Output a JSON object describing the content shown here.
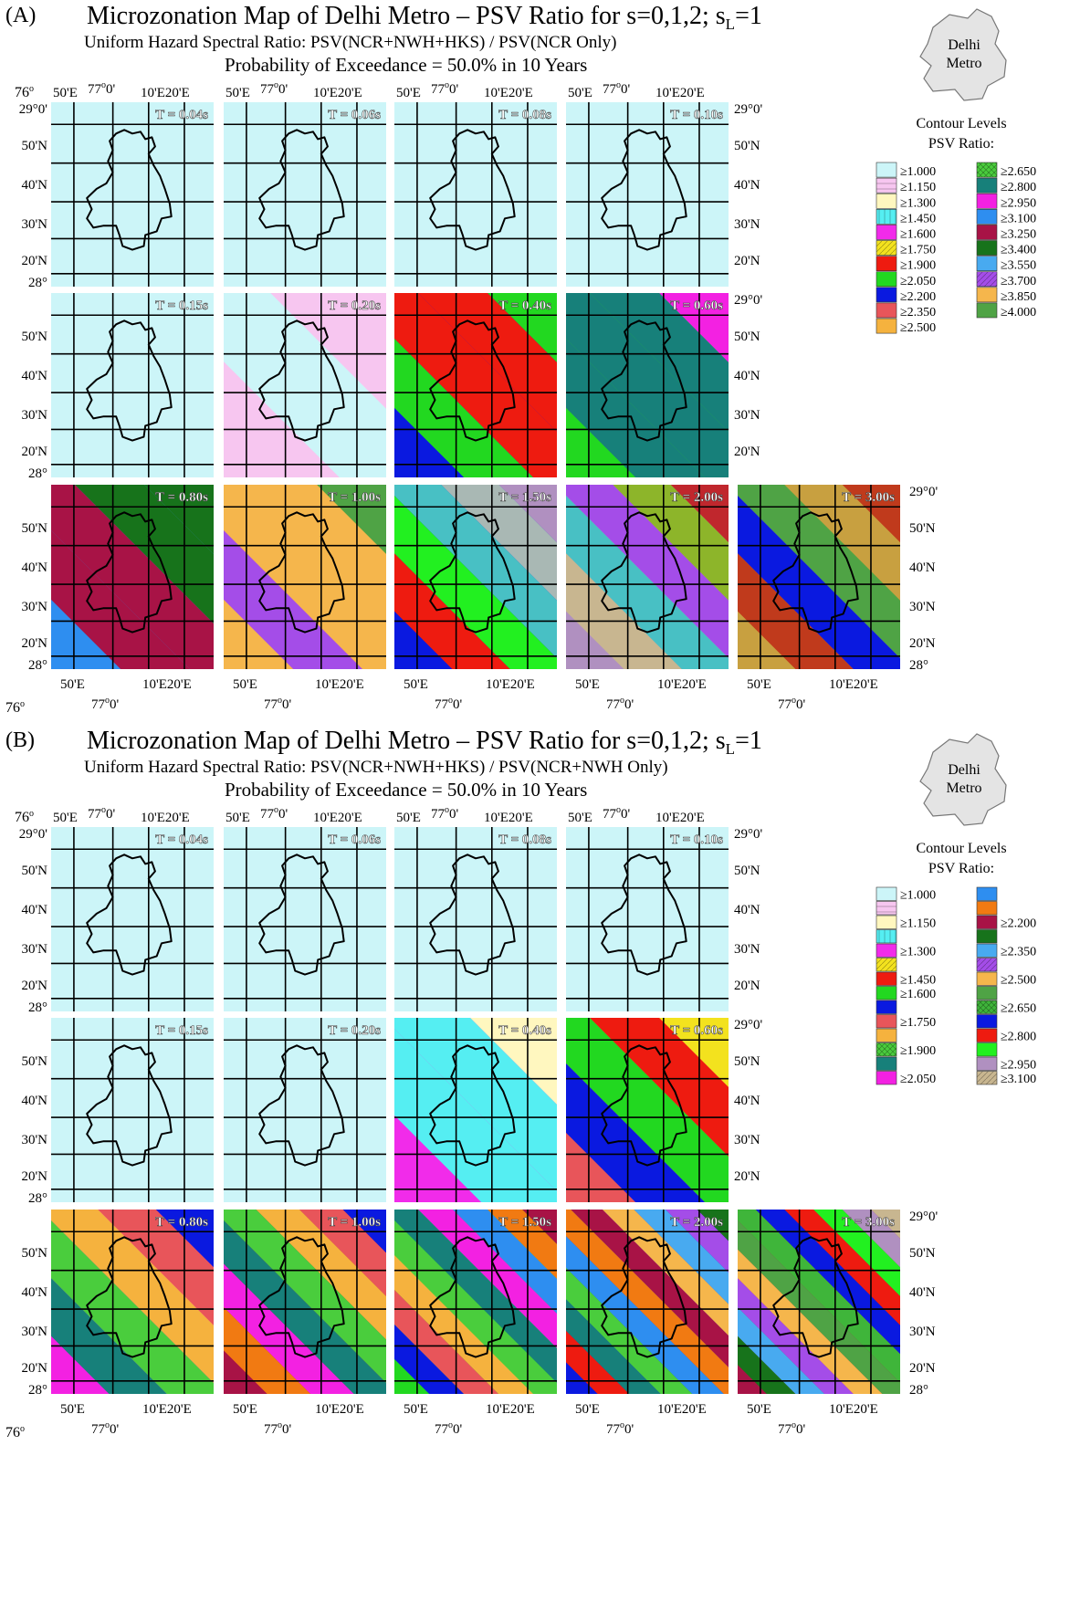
{
  "panels": [
    {
      "label": "(A)",
      "title_prefix": "Microzonation Map of Delhi Metro – PSV Ratio for s=0,1,2; s",
      "title_sub": "L",
      "title_suffix": "=1",
      "subtitle": "Uniform Hazard Spectral Ratio: PSV(NCR+NWH+HKS) / PSV(NCR Only)",
      "probability": "Probability of Exceedance = 50.0% in 10 Years",
      "inset_label_1": "Delhi",
      "inset_label_2": "Metro",
      "legend_title_1": "Contour Levels",
      "legend_title_2": "PSV Ratio:",
      "legend": [
        {
          "label": "≥1.000",
          "color": "#ccf5f8",
          "pattern": "none"
        },
        {
          "label": "≥1.150",
          "color": "#f7c6f0",
          "pattern": "hlines"
        },
        {
          "label": "≥1.300",
          "color": "#fff7bf",
          "pattern": "none"
        },
        {
          "label": "≥1.450",
          "color": "#55eef2",
          "pattern": "vlines"
        },
        {
          "label": "≥1.600",
          "color": "#f12bea",
          "pattern": "none"
        },
        {
          "label": "≥1.750",
          "color": "#f3e21e",
          "pattern": "diag"
        },
        {
          "label": "≥1.900",
          "color": "#ee1b10",
          "pattern": "none"
        },
        {
          "label": "≥2.050",
          "color": "#22d820",
          "pattern": "none"
        },
        {
          "label": "≥2.200",
          "color": "#0a19e0",
          "pattern": "none"
        },
        {
          "label": "≥2.350",
          "color": "#e8555a",
          "pattern": "none"
        },
        {
          "label": "≥2.500",
          "color": "#f5b23e",
          "pattern": "none"
        },
        {
          "label": "≥2.650",
          "color": "#4acd3d",
          "pattern": "cross"
        },
        {
          "label": "≥2.800",
          "color": "#17807a",
          "pattern": "none"
        },
        {
          "label": "≥2.950",
          "color": "#f321e2",
          "pattern": "none"
        },
        {
          "label": "≥3.100",
          "color": "#2e8ef0",
          "pattern": "none"
        },
        {
          "label": "≥3.250",
          "color": "#a81346",
          "pattern": "none"
        },
        {
          "label": "≥3.400",
          "color": "#17731b",
          "pattern": "none"
        },
        {
          "label": "≥3.550",
          "color": "#48aaf0",
          "pattern": "none"
        },
        {
          "label": "≥3.700",
          "color": "#a44de8",
          "pattern": "diag"
        },
        {
          "label": "≥3.850",
          "color": "#f5b64c",
          "pattern": "none"
        },
        {
          "label": "≥4.000",
          "color": "#4fa345",
          "pattern": "none"
        }
      ],
      "legend_count_note": "",
      "periods": [
        "T = 0.04s",
        "T = 0.06s",
        "T = 0.08s",
        "T = 0.10s",
        "T = 0.15s",
        "T = 0.20s",
        "T = 0.40s",
        "T = 0.60s",
        "T = 0.80s",
        "T = 1.00s",
        "T = 1.50s",
        "T = 2.00s",
        "T = 3.00s"
      ],
      "lon_top": {
        "deg76": "76",
        "sup": "o",
        "l1": "50'E",
        "l2": "77",
        "l3": "10'E",
        "l4": "20'E"
      },
      "lon_bottom": {
        "l1": "50'E",
        "l2": "77",
        "l3": "10'E20'E",
        "deg76": "76"
      },
      "lat_labels": [
        "29°0'",
        "50'N",
        "40'N",
        "30'N",
        "20'N",
        "28°"
      ]
    },
    {
      "label": "(B)",
      "title_prefix": "Microzonation Map of Delhi Metro – PSV Ratio for s=0,1,2; s",
      "title_sub": "L",
      "title_suffix": "=1",
      "subtitle": "Uniform Hazard Spectral Ratio: PSV(NCR+NWH+HKS) / PSV(NCR+NWH Only)",
      "probability": "Probability of Exceedance = 50.0% in 10 Years",
      "inset_label_1": "Delhi",
      "inset_label_2": "Metro",
      "legend_title_1": "Contour Levels",
      "legend_title_2": "PSV Ratio:",
      "legend": [
        {
          "label": "≥1.000",
          "color": "#ccf5f8",
          "pattern": "none"
        },
        {
          "label": "",
          "color": "#f7c6f0",
          "pattern": "hlines"
        },
        {
          "label": "≥1.150",
          "color": "#fff7bf",
          "pattern": "none"
        },
        {
          "label": "",
          "color": "#55eef2",
          "pattern": "vlines"
        },
        {
          "label": "≥1.300",
          "color": "#f12bea",
          "pattern": "none"
        },
        {
          "label": "",
          "color": "#f3e21e",
          "pattern": "diag"
        },
        {
          "label": "≥1.450",
          "color": "#ee1b10",
          "pattern": "none"
        },
        {
          "label": "≥1.600",
          "color": "#22d820",
          "pattern": "none"
        },
        {
          "label": "",
          "color": "#0a19e0",
          "pattern": "none"
        },
        {
          "label": "≥1.750",
          "color": "#e8555a",
          "pattern": "none"
        },
        {
          "label": "",
          "color": "#f5b23e",
          "pattern": "none"
        },
        {
          "label": "≥1.900",
          "color": "#4acd3d",
          "pattern": "cross"
        },
        {
          "label": "",
          "color": "#17807a",
          "pattern": "none"
        },
        {
          "label": "≥2.050",
          "color": "#f321e2",
          "pattern": "none"
        },
        {
          "label": "",
          "color": "#2e8ef0",
          "pattern": "none"
        },
        {
          "label": "",
          "color": "#f17a12",
          "pattern": "none"
        },
        {
          "label": "≥2.200",
          "color": "#a81346",
          "pattern": "none"
        },
        {
          "label": "",
          "color": "#17731b",
          "pattern": "none"
        },
        {
          "label": "≥2.350",
          "color": "#48aaf0",
          "pattern": "none"
        },
        {
          "label": "",
          "color": "#a44de8",
          "pattern": "diag"
        },
        {
          "label": "≥2.500",
          "color": "#f5b64c",
          "pattern": "none"
        },
        {
          "label": "",
          "color": "#4fa345",
          "pattern": "none"
        },
        {
          "label": "≥2.650",
          "color": "#3fb53a",
          "pattern": "cross"
        },
        {
          "label": "",
          "color": "#0a19e0",
          "pattern": "none"
        },
        {
          "label": "≥2.800",
          "color": "#ee1b10",
          "pattern": "none"
        },
        {
          "label": "",
          "color": "#22f020",
          "pattern": "none"
        },
        {
          "label": "≥2.950",
          "color": "#b090c0",
          "pattern": "none"
        },
        {
          "label": "≥3.100",
          "color": "#c8b690",
          "pattern": "diag"
        }
      ],
      "periods": [
        "T = 0.04s",
        "T = 0.06s",
        "T = 0.08s",
        "T = 0.10s",
        "T = 0.15s",
        "T = 0.20s",
        "T = 0.40s",
        "T = 0.60s",
        "T = 0.80s",
        "T = 1.00s",
        "T = 1.50s",
        "T = 2.00s",
        "T = 3.00s"
      ],
      "lon_top": {
        "deg76": "76",
        "sup": "o",
        "l1": "50'E",
        "l2": "77",
        "l3": "10'E",
        "l4": "20'E"
      },
      "lon_bottom": {
        "l1": "50'E",
        "l2": "77",
        "l3": "10'E20'E",
        "deg76": "76"
      },
      "lat_labels": [
        "29°0'",
        "50'N",
        "40'N",
        "30'N",
        "20'N",
        "28°"
      ]
    }
  ],
  "maps": {
    "A": [
      {
        "period": "T = 0.04s",
        "bands": [
          "#ccf5f8"
        ]
      },
      {
        "period": "T = 0.06s",
        "bands": [
          "#ccf5f8"
        ]
      },
      {
        "period": "T = 0.08s",
        "bands": [
          "#ccf5f8"
        ]
      },
      {
        "period": "T = 0.10s",
        "bands": [
          "#ccf5f8"
        ]
      },
      {
        "period": "T = 0.15s",
        "bands": [
          "#ccf5f8"
        ]
      },
      {
        "period": "T = 0.20s",
        "bands": [
          "#f7c6f0",
          "#ccf5f8",
          "#f7c6f0"
        ]
      },
      {
        "period": "T = 0.40s",
        "bands": [
          "#22d820",
          "#ee1b10",
          "#ee1b10",
          "#22d820",
          "#0a19e0"
        ]
      },
      {
        "period": "T = 0.60s",
        "bands": [
          "#f321e2",
          "#17807a",
          "#17807a",
          "#17807a",
          "#22d820"
        ]
      },
      {
        "period": "T = 0.80s",
        "bands": [
          "#17731b",
          "#17731b",
          "#a81346",
          "#a81346",
          "#2e8ef0"
        ]
      },
      {
        "period": "T = 1.00s",
        "bands": [
          "#4fa345",
          "#f5b64c",
          "#f5b64c",
          "#a44de8",
          "#f5b64c"
        ]
      },
      {
        "period": "T = 1.50s",
        "bands": [
          "#b090c0",
          "#a9b8b4",
          "#48c0c4",
          "#22f020",
          "#ee1b10",
          "#0a19e0"
        ]
      },
      {
        "period": "T = 2.00s",
        "bands": [
          "#c0272d",
          "#8db52a",
          "#a44de8",
          "#48c0c4",
          "#c8b690",
          "#b090c0"
        ]
      },
      {
        "period": "T = 3.00s",
        "bands": [
          "#c03a1c",
          "#c8a040",
          "#4fa345",
          "#0a19e0",
          "#c03a1c",
          "#c8a040"
        ]
      }
    ],
    "B": [
      {
        "period": "T = 0.04s",
        "bands": [
          "#ccf5f8"
        ]
      },
      {
        "period": "T = 0.06s",
        "bands": [
          "#ccf5f8"
        ]
      },
      {
        "period": "T = 0.08s",
        "bands": [
          "#ccf5f8"
        ]
      },
      {
        "period": "T = 0.10s",
        "bands": [
          "#ccf5f8"
        ]
      },
      {
        "period": "T = 0.15s",
        "bands": [
          "#ccf5f8"
        ]
      },
      {
        "period": "T = 0.20s",
        "bands": [
          "#ccf5f8"
        ]
      },
      {
        "period": "T = 0.40s",
        "bands": [
          "#fff7bf",
          "#55eef2",
          "#55eef2",
          "#f12bea"
        ]
      },
      {
        "period": "T = 0.60s",
        "bands": [
          "#f3e21e",
          "#ee1b10",
          "#22d820",
          "#0a19e0",
          "#e8555a"
        ]
      },
      {
        "period": "T = 0.80s",
        "bands": [
          "#0a19e0",
          "#e8555a",
          "#f5b23e",
          "#4acd3d",
          "#17807a",
          "#f321e2"
        ]
      },
      {
        "period": "T = 1.00s",
        "bands": [
          "#0a19e0",
          "#e8555a",
          "#f5b23e",
          "#4acd3d",
          "#17807a",
          "#f321e2",
          "#f17a12",
          "#a81346"
        ]
      },
      {
        "period": "T = 1.50s",
        "bands": [
          "#a81346",
          "#f17a12",
          "#2e8ef0",
          "#f321e2",
          "#17807a",
          "#4acd3d",
          "#f5b23e",
          "#e8555a",
          "#0a19e0",
          "#22d820"
        ]
      },
      {
        "period": "T = 2.00s",
        "bands": [
          "#17731b",
          "#a44de8",
          "#48aaf0",
          "#f5b64c",
          "#a81346",
          "#f17a12",
          "#2e8ef0",
          "#4acd3d",
          "#17807a",
          "#ee1b10",
          "#0a19e0"
        ]
      },
      {
        "period": "T = 3.00s",
        "bands": [
          "#c8b690",
          "#b090c0",
          "#22f020",
          "#ee1b10",
          "#0a19e0",
          "#3fb53a",
          "#4fa345",
          "#f5b64c",
          "#a44de8",
          "#48aaf0",
          "#17731b",
          "#a81346"
        ]
      }
    ]
  }
}
